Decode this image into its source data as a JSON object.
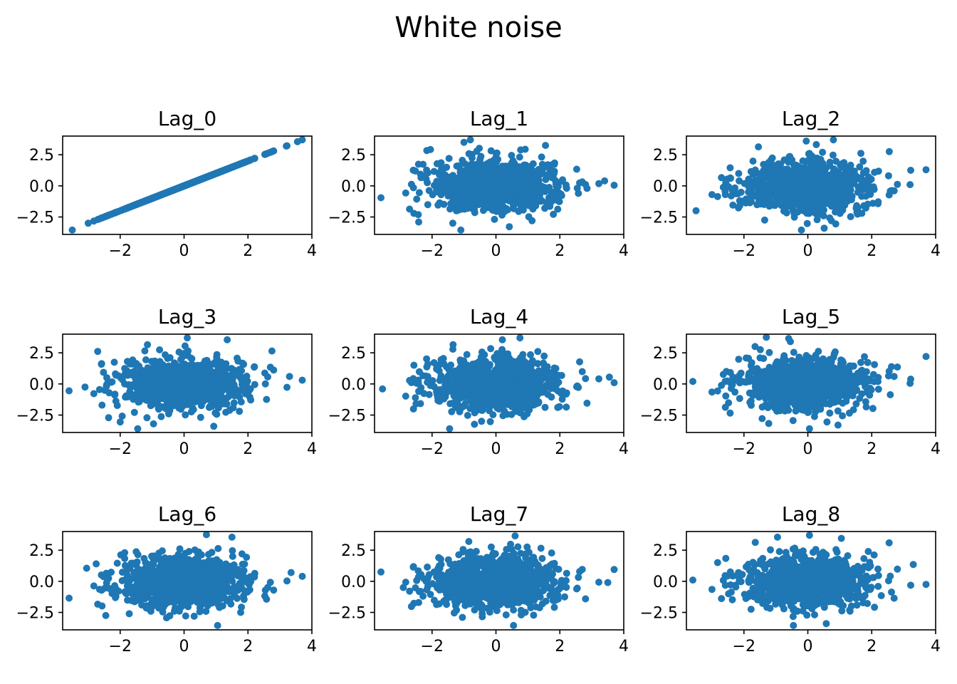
{
  "figure": {
    "title": "White noise"
  },
  "chart_data": {
    "type": "scatter",
    "title": "White noise",
    "marker_color": "#1f77b4",
    "n_points": 1000,
    "xlim": [
      -3.8,
      4.0
    ],
    "ylim": [
      -3.9,
      4.0
    ],
    "x_ticks": [
      -2,
      0,
      2,
      4
    ],
    "x_tick_labels": [
      "−2",
      "0",
      "2",
      "4"
    ],
    "y_ticks": [
      2.5,
      0.0,
      -2.5
    ],
    "y_tick_labels": [
      "2.5",
      "0.0",
      "−2.5"
    ],
    "xlabel": "",
    "ylabel": "",
    "grid": false,
    "legend": "none",
    "panels": [
      {
        "title": "Lag_0",
        "lag": 0,
        "correlation": 1.0,
        "extremes": [
          [
            -3.5,
            -3.55
          ],
          [
            -3.0,
            -3.0
          ],
          [
            3.2,
            3.2
          ],
          [
            3.55,
            3.55
          ],
          [
            3.7,
            3.7
          ],
          [
            2.75,
            2.75
          ]
        ]
      },
      {
        "title": "Lag_1",
        "lag": 1,
        "correlation": 0.0,
        "extremes": [
          [
            -3.6,
            -0.95
          ],
          [
            3.4,
            0.4
          ],
          [
            3.7,
            0.05
          ],
          [
            -1.0,
            3.5
          ],
          [
            -0.8,
            3.7
          ],
          [
            1.55,
            3.25
          ],
          [
            -1.1,
            -3.55
          ],
          [
            -1.35,
            -3.0
          ],
          [
            2.85,
            -0.2
          ]
        ]
      },
      {
        "title": "Lag_2",
        "lag": 2,
        "correlation": 0.0,
        "extremes": [
          [
            -3.5,
            -2.0
          ],
          [
            -3.0,
            -0.7
          ],
          [
            3.7,
            1.3
          ],
          [
            3.2,
            0.1
          ],
          [
            -0.05,
            3.6
          ],
          [
            0.8,
            3.7
          ],
          [
            -0.2,
            -3.55
          ],
          [
            -1.35,
            -2.75
          ],
          [
            2.55,
            2.75
          ]
        ]
      },
      {
        "title": "Lag_3",
        "lag": 3,
        "correlation": 0.0,
        "extremes": [
          [
            -3.6,
            -0.55
          ],
          [
            -3.1,
            -0.25
          ],
          [
            3.7,
            0.3
          ],
          [
            3.3,
            0.6
          ],
          [
            0.1,
            3.7
          ],
          [
            1.35,
            3.55
          ],
          [
            -2.0,
            -3.05
          ],
          [
            -1.45,
            -3.6
          ],
          [
            2.75,
            2.65
          ]
        ]
      },
      {
        "title": "Lag_4",
        "lag": 4,
        "correlation": 0.0,
        "extremes": [
          [
            -3.55,
            -0.4
          ],
          [
            3.55,
            0.55
          ],
          [
            3.7,
            0.1
          ],
          [
            0.2,
            3.55
          ],
          [
            0.75,
            3.7
          ],
          [
            -1.45,
            -3.6
          ],
          [
            -0.45,
            -3.0
          ],
          [
            -2.5,
            -1.6
          ],
          [
            2.85,
            -1.55
          ]
        ]
      },
      {
        "title": "Lag_5",
        "lag": 5,
        "correlation": 0.0,
        "extremes": [
          [
            -3.6,
            0.2
          ],
          [
            -3.0,
            -0.65
          ],
          [
            3.7,
            2.2
          ],
          [
            3.2,
            0.05
          ],
          [
            -1.3,
            3.75
          ],
          [
            -0.6,
            3.65
          ],
          [
            0.05,
            -3.6
          ],
          [
            0.6,
            -3.05
          ],
          [
            -2.55,
            1.0
          ]
        ]
      },
      {
        "title": "Lag_6",
        "lag": 6,
        "correlation": 0.0,
        "extremes": [
          [
            -3.6,
            -1.35
          ],
          [
            -3.05,
            1.05
          ],
          [
            3.7,
            0.4
          ],
          [
            3.35,
            0.7
          ],
          [
            0.7,
            3.75
          ],
          [
            1.5,
            3.55
          ],
          [
            1.05,
            -3.55
          ],
          [
            -2.45,
            -2.75
          ],
          [
            -2.75,
            1.4
          ]
        ]
      },
      {
        "title": "Lag_7",
        "lag": 7,
        "correlation": 0.0,
        "extremes": [
          [
            -3.6,
            0.75
          ],
          [
            3.7,
            0.95
          ],
          [
            3.5,
            -0.1
          ],
          [
            0.6,
            3.65
          ],
          [
            -0.85,
            3.2
          ],
          [
            0.55,
            -3.55
          ],
          [
            -1.05,
            -2.9
          ],
          [
            -2.9,
            -0.5
          ],
          [
            2.15,
            -1.25
          ]
        ]
      },
      {
        "title": "Lag_8",
        "lag": 8,
        "correlation": 0.0,
        "extremes": [
          [
            -3.6,
            0.1
          ],
          [
            -3.0,
            -0.65
          ],
          [
            3.7,
            -0.25
          ],
          [
            3.3,
            1.35
          ],
          [
            0.05,
            3.7
          ],
          [
            -0.95,
            3.55
          ],
          [
            -0.45,
            -3.55
          ],
          [
            1.05,
            3.45
          ],
          [
            2.3,
            -1.15
          ]
        ]
      }
    ]
  }
}
